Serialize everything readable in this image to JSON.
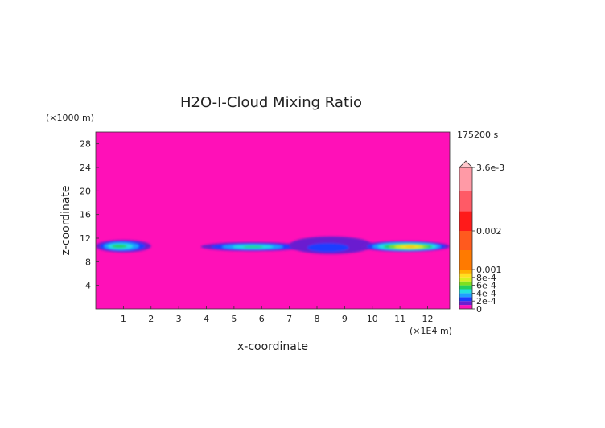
{
  "chart_data": {
    "type": "heatmap",
    "title": "H2O-I-Cloud Mixing Ratio",
    "xlabel": "x-coordinate",
    "ylabel": "z-coordinate",
    "x_unit": "(×1E4 m)",
    "y_unit": "(×1000 m)",
    "time_label": "175200 s",
    "xlim": [
      0,
      12.8
    ],
    "ylim": [
      0,
      30
    ],
    "xticks": [
      1,
      2,
      3,
      4,
      5,
      6,
      7,
      8,
      9,
      10,
      11,
      12
    ],
    "yticks": [
      4,
      8,
      12,
      16,
      20,
      24,
      28
    ],
    "background_color": "#ff10b8",
    "colorbar": {
      "levels": [
        {
          "value": 0,
          "color": "#ff10b8"
        },
        {
          "value": 0.0001,
          "color": "#6a1fd0"
        },
        {
          "value": 0.0002,
          "color": "#1a3cff"
        },
        {
          "value": 0.0003,
          "color": "#1fa0ff"
        },
        {
          "value": 0.0004,
          "color": "#22e0e0"
        },
        {
          "value": 0.0005,
          "color": "#22d060"
        },
        {
          "value": 0.0006,
          "color": "#7ee020"
        },
        {
          "value": 0.0007,
          "color": "#d8f020"
        },
        {
          "value": 0.0008,
          "color": "#ffe020"
        },
        {
          "value": 0.0009,
          "color": "#ffb000"
        },
        {
          "value": 0.001,
          "color": "#ff7a00"
        },
        {
          "value": 0.0015,
          "color": "#ff5a1e"
        },
        {
          "value": 0.002,
          "color": "#ff1a1a"
        },
        {
          "value": 0.0025,
          "color": "#ff5a66"
        },
        {
          "value": 0.003,
          "color": "#ff9aa6"
        },
        {
          "value": 0.0036,
          "color": "#ffc8cc"
        }
      ],
      "tick_labels": [
        {
          "value": 0,
          "label": "0"
        },
        {
          "value": 0.0002,
          "label": "2e-4"
        },
        {
          "value": 0.0004,
          "label": "4e-4"
        },
        {
          "value": 0.0006,
          "label": "6e-4"
        },
        {
          "value": 0.0008,
          "label": "8e-4"
        },
        {
          "value": 0.001,
          "label": "0.001"
        },
        {
          "value": 0.002,
          "label": "0.002"
        },
        {
          "value": 0.0036,
          "label": "3.6e-3"
        }
      ],
      "extend": "max"
    },
    "cloud_features": [
      {
        "x_range": [
          0,
          2.0
        ],
        "z_range": [
          9.6,
          11.7
        ],
        "peak_x": 0.8,
        "peak_z": 10.6,
        "peak_value": 0.00055
      },
      {
        "x_range": [
          3.8,
          7.5
        ],
        "z_range": [
          9.8,
          11.3
        ],
        "peak_x": 5.7,
        "peak_z": 10.5,
        "peak_value": 0.0005
      },
      {
        "x_range": [
          7.0,
          10.0
        ],
        "z_range": [
          9.3,
          12.3
        ],
        "peak_x": 8.3,
        "peak_z": 10.0,
        "peak_value": 0.0002
      },
      {
        "x_range": [
          9.6,
          12.8
        ],
        "z_range": [
          9.7,
          11.5
        ],
        "peak_x": 11.4,
        "peak_z": 10.5,
        "peak_value": 0.0009
      }
    ]
  }
}
